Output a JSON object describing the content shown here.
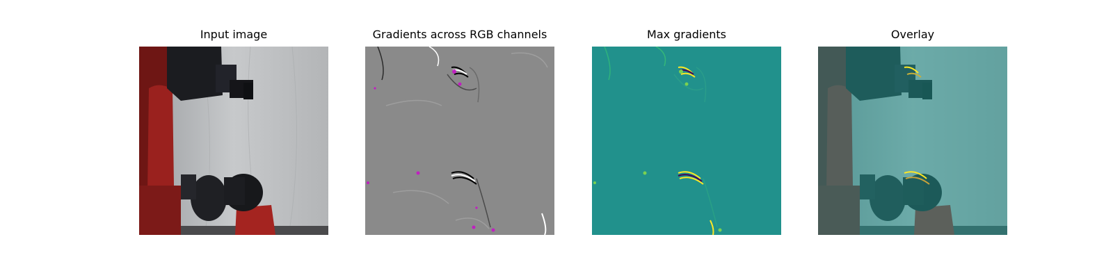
{
  "figure": {
    "panels": [
      {
        "title": "Input image"
      },
      {
        "title": "Gradients across RGB channels"
      },
      {
        "title": "Max gradients"
      },
      {
        "title": "Overlay"
      }
    ]
  },
  "colors": {
    "background": "#ffffff",
    "robot_red": "#8e1f1c",
    "gripper_black": "#1c1d22",
    "curtain_gray": "#b9bbbd",
    "gradient_gray": "#8a8a8a",
    "gradient_magenta": "#c020c0",
    "viridis_teal": "#21918c",
    "viridis_yellow": "#fde725",
    "overlay_teal": "#4f8a87"
  }
}
